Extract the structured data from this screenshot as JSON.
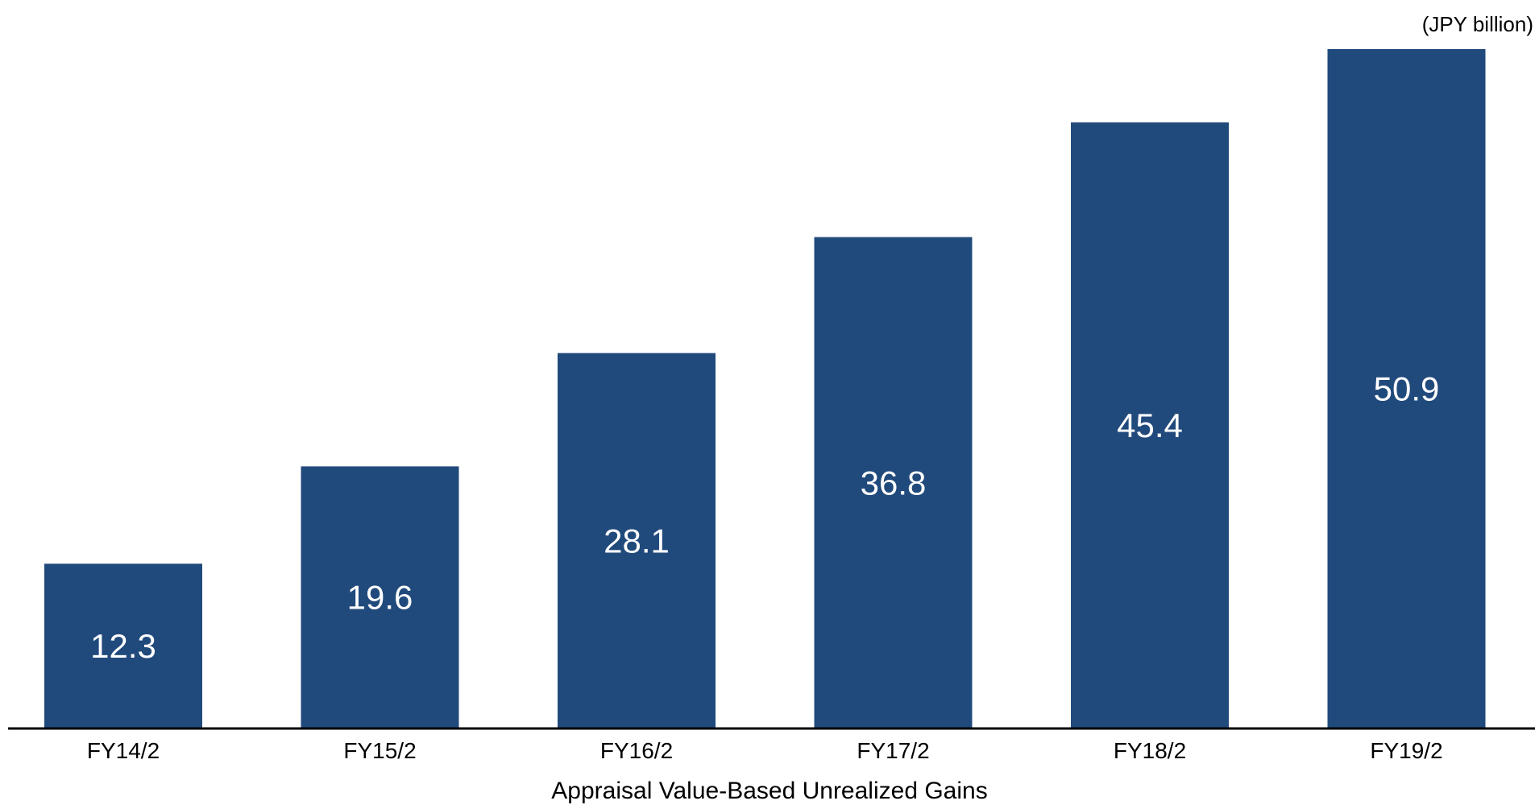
{
  "chart_data": {
    "type": "bar",
    "unit_note": "(JPY billion)",
    "categories": [
      "FY14/2",
      "FY15/2",
      "FY16/2",
      "FY17/2",
      "FY18/2",
      "FY19/2"
    ],
    "series": [
      {
        "name": "Appraisal Value-Based Unrealized Gains",
        "values": [
          12.3,
          19.6,
          28.1,
          36.8,
          45.4,
          50.9
        ]
      }
    ],
    "ylim": [
      0,
      50.9
    ],
    "grid": false,
    "legend_position": "bottom",
    "colors": {
      "bar": "#214a7c",
      "bar_label": "#ffffff",
      "axis": "#000000",
      "text": "#000000"
    }
  }
}
